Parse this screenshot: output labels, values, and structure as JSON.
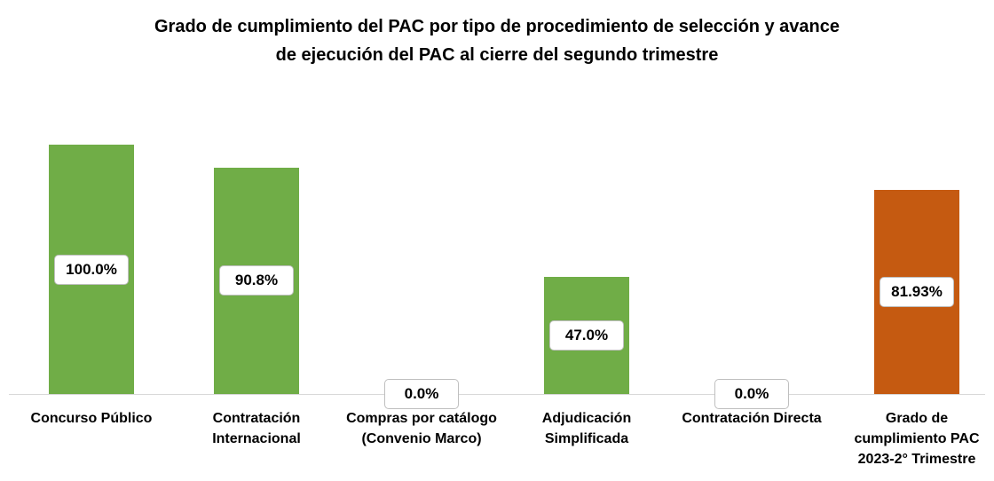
{
  "chart_data": {
    "type": "bar",
    "title": "Grado de cumplimiento del PAC por tipo de procedimiento de selección y avance de ejecución del PAC al cierre del segundo trimestre",
    "categories": [
      "Concurso Público",
      "Contratación Internacional",
      "Compras por catálogo (Convenio Marco)",
      "Adjudicación Simplificada",
      "Contratación Directa",
      "Grado de cumplimiento PAC 2023-2° Trimestre"
    ],
    "values": [
      100,
      90.8,
      0,
      47,
      0,
      81.93
    ],
    "value_labels": [
      "100.0%",
      "90.8%",
      "0.0%",
      "47.0%",
      "0.0%",
      "81.93%"
    ],
    "colors": [
      "#70ad47",
      "#70ad47",
      "#70ad47",
      "#70ad47",
      "#70ad47",
      "#c55a11"
    ]
  }
}
